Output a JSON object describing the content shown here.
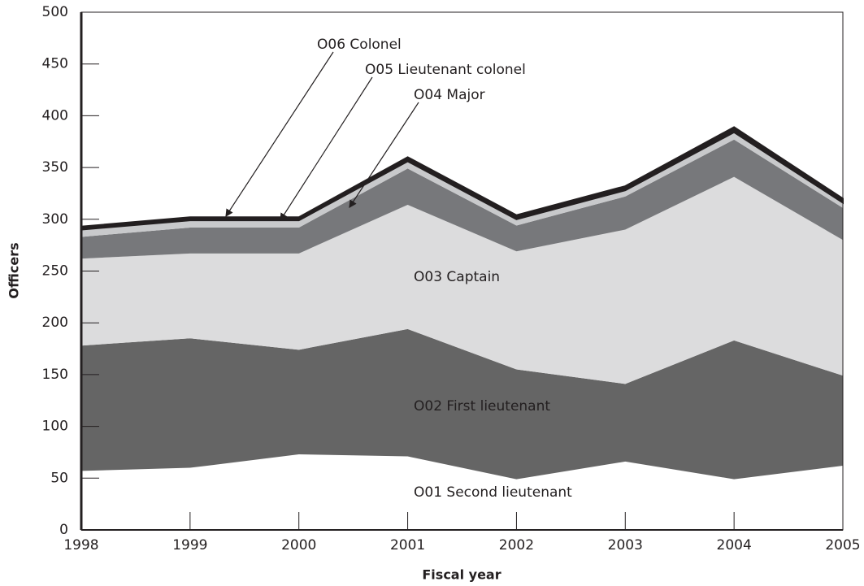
{
  "chart_data": {
    "type": "stacked-area",
    "x_label": "Fiscal year",
    "y_label": "Officers",
    "x": [
      1998,
      1999,
      2000,
      2001,
      2002,
      2003,
      2004,
      2005
    ],
    "xlim": [
      1998,
      2005
    ],
    "xticks": [
      1998,
      1999,
      2000,
      2001,
      2002,
      2003,
      2004,
      2005
    ],
    "ylim": [
      0,
      500
    ],
    "yticks": [
      0,
      50,
      100,
      150,
      200,
      250,
      300,
      350,
      400,
      450,
      500
    ],
    "series": [
      {
        "name": "O01  Second lieutenant",
        "color": "#ffffff",
        "values": [
          57,
          60,
          73,
          71,
          49,
          66,
          49,
          62
        ]
      },
      {
        "name": "O02  First lieutenant",
        "color": "#656565",
        "values": [
          121,
          125,
          101,
          123,
          106,
          75,
          134,
          87
        ]
      },
      {
        "name": "O03  Captain",
        "color": "#dcdcdd",
        "values": [
          84,
          82,
          93,
          120,
          114,
          149,
          158,
          131
        ]
      },
      {
        "name": "O04  Major",
        "color": "#77787b",
        "values": [
          21,
          25,
          25,
          35,
          25,
          32,
          36,
          31
        ]
      },
      {
        "name": "O05  Lieutenant colonel",
        "color": "#c8c9cb",
        "values": [
          7,
          7,
          7,
          7,
          6,
          6,
          7,
          5
        ]
      },
      {
        "name": "O06  Colonel",
        "color": "#231f20",
        "values": [
          3,
          3,
          3,
          4,
          4,
          4,
          5,
          4
        ]
      }
    ]
  }
}
